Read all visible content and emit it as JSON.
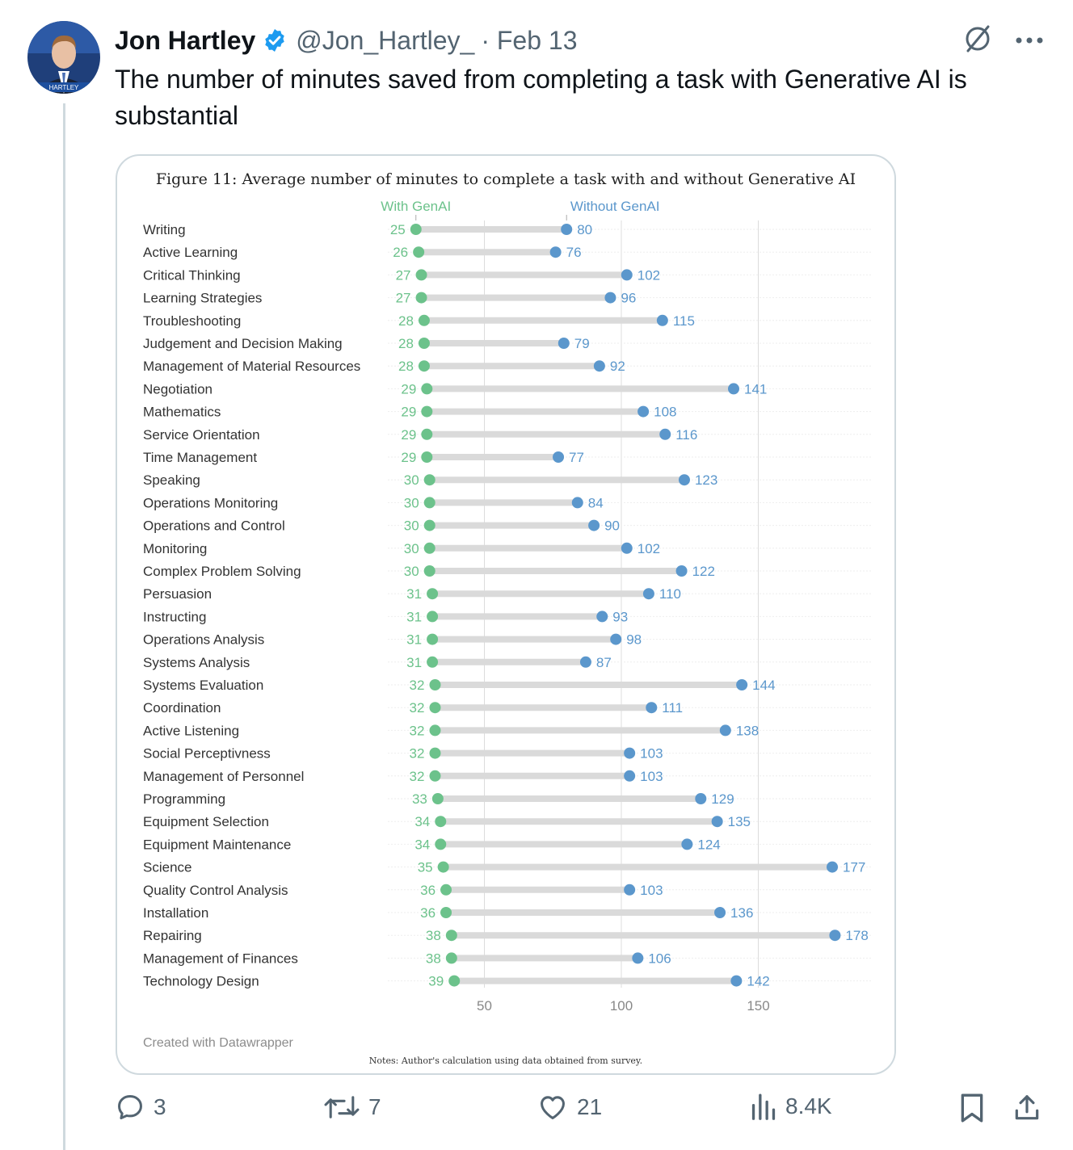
{
  "tweet": {
    "author_name": "Jon Hartley",
    "handle": "@Jon_Hartley_",
    "date": "· Feb 13",
    "text": "The number of minutes saved from completing a task with Generative AI is substantial",
    "avatar_badge": "HARTLEY"
  },
  "chart_card": {
    "title": "Figure 11: Average number of minutes to complete a task with and without Generative AI",
    "credit": "Created with Datawrapper",
    "notes": "Notes: Author's calculation using data obtained from survey."
  },
  "chart_data": {
    "type": "dot-range",
    "series": [
      {
        "name": "With GenAI",
        "color": "#6cc28b"
      },
      {
        "name": "Without GenAI",
        "color": "#5b97cc"
      }
    ],
    "xlim": [
      0,
      185
    ],
    "xticks": [
      50,
      100,
      150
    ],
    "categories": [
      "Writing",
      "Active Learning",
      "Critical Thinking",
      "Learning Strategies",
      "Troubleshooting",
      "Judgement and Decision Making",
      "Management of Material Resources",
      "Negotiation",
      "Mathematics",
      "Service Orientation",
      "Time Management",
      "Speaking",
      "Operations Monitoring",
      "Operations and Control",
      "Monitoring",
      "Complex Problem Solving",
      "Persuasion",
      "Instructing",
      "Operations Analysis",
      "Systems Analysis",
      "Systems Evaluation",
      "Coordination",
      "Active Listening",
      "Social Perceptivness",
      "Management of Personnel",
      "Programming",
      "Equipment Selection",
      "Equipment Maintenance",
      "Science",
      "Quality Control Analysis",
      "Installation",
      "Repairing",
      "Management of Finances",
      "Technology Design"
    ],
    "with_genai": [
      25,
      26,
      27,
      27,
      28,
      28,
      28,
      29,
      29,
      29,
      29,
      30,
      30,
      30,
      30,
      30,
      31,
      31,
      31,
      31,
      32,
      32,
      32,
      32,
      32,
      33,
      34,
      34,
      35,
      36,
      36,
      38,
      38,
      39
    ],
    "without_genai": [
      80,
      76,
      102,
      96,
      115,
      79,
      92,
      141,
      108,
      116,
      77,
      123,
      84,
      90,
      102,
      122,
      110,
      93,
      98,
      87,
      144,
      111,
      138,
      103,
      103,
      129,
      135,
      124,
      177,
      103,
      136,
      178,
      106,
      142
    ]
  },
  "actions": {
    "replies": "3",
    "reposts": "7",
    "likes": "21",
    "views": "8.4K"
  },
  "colors": {
    "handle_gray": "#536471",
    "verified_blue": "#1d9bf0",
    "with_genai_green": "#6cc28b",
    "without_genai_blue": "#5b97cc"
  }
}
